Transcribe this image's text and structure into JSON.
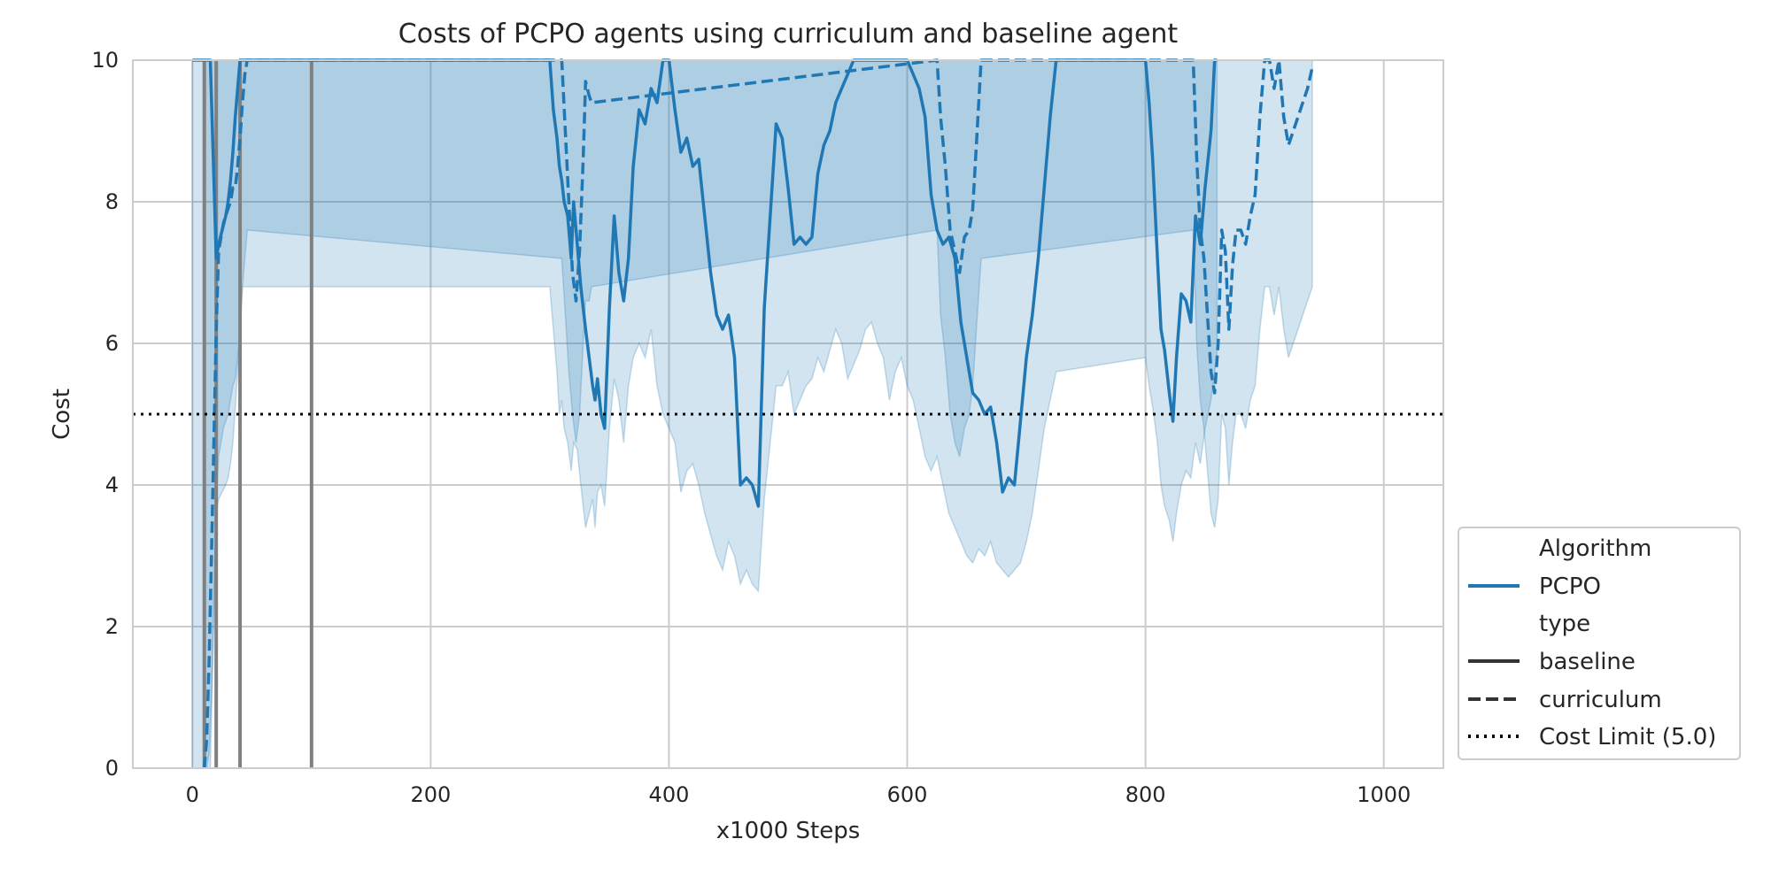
{
  "chart_data": {
    "type": "line",
    "title": "Costs of PCPO agents using curriculum and baseline agent",
    "xlabel": "x1000 Steps",
    "ylabel": "Cost",
    "xlim": [
      -50,
      1050
    ],
    "ylim": [
      0,
      10
    ],
    "x_ticks": [
      0,
      200,
      400,
      600,
      800,
      1000
    ],
    "y_ticks": [
      0,
      2,
      4,
      6,
      8,
      10
    ],
    "grid": true,
    "legend_position": "lower-right outside",
    "colors": {
      "series": "#1f77b4",
      "band": "#1f77b4",
      "limit": "#000000",
      "curriculum_marker": "#808080",
      "grid": "#cccccc"
    },
    "legend": {
      "entries": [
        {
          "label": "Algorithm",
          "style": "header"
        },
        {
          "label": "PCPO",
          "style": "color"
        },
        {
          "label": "type",
          "style": "header"
        },
        {
          "label": "baseline",
          "style": "solid"
        },
        {
          "label": "curriculum",
          "style": "dashed"
        },
        {
          "label": "Cost Limit (5.0)",
          "style": "dotted"
        }
      ]
    },
    "cost_limit": 5.0,
    "curriculum_task_switches": [
      10,
      20,
      40,
      100
    ],
    "series": [
      {
        "name": "baseline",
        "algorithm": "PCPO",
        "linestyle": "solid",
        "x": [
          0,
          15,
          20,
          22,
          25,
          28,
          30,
          32,
          34,
          36,
          38,
          40,
          42,
          300,
          303,
          306,
          308,
          310,
          312,
          315,
          318,
          320,
          323,
          326,
          330,
          333,
          336,
          338,
          340,
          343,
          346,
          350,
          354,
          358,
          362,
          366,
          370,
          375,
          380,
          385,
          390,
          395,
          400,
          405,
          410,
          415,
          420,
          425,
          430,
          435,
          440,
          445,
          450,
          455,
          460,
          465,
          470,
          475,
          480,
          485,
          490,
          495,
          500,
          505,
          510,
          515,
          520,
          525,
          530,
          535,
          540,
          545,
          550,
          555,
          560,
          565,
          570,
          575,
          580,
          585,
          590,
          595,
          600,
          605,
          610,
          615,
          620,
          625,
          630,
          635,
          640,
          645,
          650,
          655,
          660,
          665,
          670,
          675,
          680,
          685,
          690,
          695,
          700,
          705,
          710,
          715,
          720,
          725,
          800,
          803,
          806,
          810,
          813,
          816,
          820,
          823,
          826,
          830,
          834,
          838,
          842,
          846,
          850,
          855,
          858,
          860
        ],
        "y": [
          10.0,
          10.0,
          7.2,
          7.4,
          7.6,
          7.8,
          8.0,
          8.3,
          8.7,
          9.2,
          9.6,
          10.0,
          10.0,
          10.0,
          9.3,
          8.9,
          8.5,
          8.3,
          8.0,
          7.8,
          7.2,
          8.0,
          7.4,
          6.8,
          6.2,
          5.8,
          5.4,
          5.2,
          5.5,
          5.0,
          4.8,
          6.5,
          7.8,
          7.0,
          6.6,
          7.2,
          8.5,
          9.3,
          9.1,
          9.6,
          9.4,
          10.0,
          10.0,
          9.3,
          8.7,
          8.9,
          8.5,
          8.6,
          7.8,
          7.0,
          6.4,
          6.2,
          6.4,
          5.8,
          4.0,
          4.1,
          4.0,
          3.7,
          6.5,
          7.8,
          9.1,
          8.9,
          8.2,
          7.4,
          7.5,
          7.4,
          7.5,
          8.4,
          8.8,
          9.0,
          9.4,
          9.6,
          9.8,
          10.0,
          10.0,
          10.0,
          10.0,
          10.0,
          10.0,
          10.0,
          10.0,
          10.0,
          10.0,
          9.8,
          9.6,
          9.2,
          8.1,
          7.6,
          7.4,
          7.5,
          7.2,
          6.3,
          5.8,
          5.3,
          5.2,
          5.0,
          5.1,
          4.6,
          3.9,
          4.1,
          4.0,
          4.9,
          5.8,
          6.4,
          7.2,
          8.2,
          9.2,
          10.0,
          10.0,
          9.4,
          8.6,
          7.2,
          6.2,
          5.9,
          5.3,
          4.9,
          5.8,
          6.7,
          6.6,
          6.3,
          7.8,
          7.4,
          8.2,
          9.0,
          10.0,
          10.0
        ],
        "ci_low": [
          0.0,
          0.0,
          3.6,
          3.8,
          3.9,
          4.0,
          4.1,
          4.3,
          4.6,
          5.1,
          5.6,
          6.2,
          6.8,
          6.8,
          6.2,
          5.6,
          5.0,
          5.2,
          4.8,
          4.6,
          4.2,
          4.6,
          4.5,
          4.0,
          3.4,
          3.6,
          3.8,
          3.4,
          3.9,
          4.0,
          3.7,
          4.8,
          5.5,
          5.2,
          4.6,
          5.4,
          5.8,
          6.0,
          5.8,
          6.2,
          5.4,
          5.0,
          4.8,
          4.6,
          3.9,
          4.2,
          4.3,
          4.0,
          3.6,
          3.3,
          3.0,
          2.8,
          3.2,
          3.0,
          2.6,
          2.8,
          2.6,
          2.5,
          3.8,
          4.6,
          5.4,
          5.4,
          5.6,
          5.0,
          5.2,
          5.4,
          5.5,
          5.8,
          5.6,
          5.9,
          6.2,
          6.0,
          5.5,
          5.7,
          5.9,
          6.2,
          6.3,
          6.0,
          5.8,
          5.2,
          5.6,
          5.8,
          5.4,
          5.2,
          4.8,
          4.4,
          4.2,
          4.4,
          4.0,
          3.6,
          3.4,
          3.2,
          3.0,
          2.9,
          3.1,
          3.0,
          3.2,
          2.9,
          2.8,
          2.7,
          2.8,
          2.9,
          3.2,
          3.6,
          4.2,
          4.8,
          5.2,
          5.6,
          5.8,
          5.4,
          5.1,
          4.6,
          4.0,
          3.7,
          3.5,
          3.2,
          3.6,
          4.0,
          4.2,
          4.1,
          4.6,
          4.3,
          4.8,
          5.2,
          5.6,
          5.8
        ],
        "ci_high": [
          10.0,
          10.0,
          10.0,
          10.0,
          10.0,
          10.0,
          10.0,
          10.0,
          10.0,
          10.0,
          10.0,
          10.0,
          10.0,
          10.0,
          10.0,
          10.0,
          10.0,
          10.0,
          10.0,
          10.0,
          10.0,
          10.0,
          10.0,
          10.0,
          10.0,
          10.0,
          10.0,
          10.0,
          10.0,
          10.0,
          10.0,
          10.0,
          10.0,
          10.0,
          10.0,
          10.0,
          10.0,
          10.0,
          10.0,
          10.0,
          10.0,
          10.0,
          10.0,
          10.0,
          10.0,
          10.0,
          10.0,
          10.0,
          10.0,
          10.0,
          10.0,
          10.0,
          10.0,
          10.0,
          10.0,
          10.0,
          10.0,
          10.0,
          10.0,
          10.0,
          10.0,
          10.0,
          10.0,
          10.0,
          10.0,
          10.0,
          10.0,
          10.0,
          10.0,
          10.0,
          10.0,
          10.0,
          10.0,
          10.0,
          10.0,
          10.0,
          10.0,
          10.0,
          10.0,
          10.0,
          10.0,
          10.0,
          10.0,
          10.0,
          10.0,
          10.0,
          10.0,
          10.0,
          10.0,
          10.0,
          10.0,
          10.0,
          10.0,
          10.0,
          10.0,
          10.0,
          10.0,
          10.0,
          10.0,
          10.0,
          10.0,
          10.0,
          10.0,
          10.0,
          10.0,
          10.0,
          10.0,
          10.0,
          10.0,
          10.0,
          10.0,
          10.0,
          10.0,
          10.0,
          10.0,
          10.0,
          10.0,
          10.0,
          10.0,
          10.0,
          10.0,
          10.0,
          10.0,
          10.0,
          10.0,
          10.0
        ]
      },
      {
        "name": "curriculum",
        "algorithm": "PCPO",
        "linestyle": "dashed",
        "x": [
          10,
          12,
          14,
          16,
          18,
          20,
          22,
          24,
          26,
          28,
          30,
          32,
          34,
          36,
          38,
          40,
          42,
          44,
          46,
          310,
          313,
          316,
          319,
          322,
          325,
          328,
          330,
          333,
          335,
          625,
          628,
          632,
          636,
          640,
          644,
          648,
          652,
          655,
          658,
          662,
          840,
          843,
          846,
          849,
          852,
          855,
          858,
          861,
          864,
          867,
          870,
          873,
          876,
          880,
          884,
          888,
          892,
          896,
          900,
          904,
          908,
          912,
          916,
          920,
          924,
          928,
          932,
          936,
          940
        ],
        "y": [
          0.0,
          0.4,
          1.5,
          3.0,
          4.6,
          6.2,
          7.3,
          7.5,
          7.7,
          7.8,
          7.9,
          8.0,
          8.2,
          8.2,
          8.5,
          8.9,
          9.4,
          9.8,
          10.0,
          10.0,
          9.0,
          8.0,
          7.0,
          6.6,
          7.3,
          8.6,
          9.7,
          9.5,
          9.4,
          10.0,
          9.2,
          8.5,
          7.6,
          7.3,
          7.0,
          7.5,
          7.6,
          7.9,
          8.8,
          10.0,
          10.0,
          8.6,
          7.6,
          7.2,
          6.4,
          5.6,
          5.3,
          6.0,
          7.6,
          7.3,
          6.2,
          7.1,
          7.6,
          7.6,
          7.4,
          7.8,
          8.1,
          9.2,
          10.0,
          10.0,
          9.6,
          10.0,
          9.2,
          8.8,
          9.0,
          9.2,
          9.4,
          9.6,
          9.9
        ],
        "ci_low": [
          0.0,
          0.0,
          0.2,
          1.0,
          2.4,
          3.8,
          4.4,
          4.6,
          4.8,
          4.9,
          5.0,
          5.2,
          5.4,
          5.5,
          5.8,
          6.2,
          6.8,
          7.2,
          7.6,
          7.2,
          6.4,
          5.6,
          5.0,
          4.6,
          5.0,
          6.0,
          6.6,
          6.6,
          6.8,
          7.6,
          6.4,
          5.8,
          5.0,
          4.6,
          4.4,
          4.8,
          5.0,
          5.4,
          6.2,
          7.2,
          7.6,
          6.0,
          5.2,
          4.8,
          4.2,
          3.6,
          3.4,
          3.8,
          5.0,
          4.8,
          4.0,
          4.6,
          5.0,
          5.0,
          4.8,
          5.2,
          5.4,
          6.2,
          6.8,
          6.8,
          6.4,
          6.8,
          6.2,
          5.8,
          6.0,
          6.2,
          6.4,
          6.6,
          6.8
        ],
        "ci_high": [
          10.0,
          10.0,
          10.0,
          10.0,
          10.0,
          10.0,
          10.0,
          10.0,
          10.0,
          10.0,
          10.0,
          10.0,
          10.0,
          10.0,
          10.0,
          10.0,
          10.0,
          10.0,
          10.0,
          10.0,
          10.0,
          10.0,
          10.0,
          10.0,
          10.0,
          10.0,
          10.0,
          10.0,
          10.0,
          10.0,
          10.0,
          10.0,
          10.0,
          10.0,
          10.0,
          10.0,
          10.0,
          10.0,
          10.0,
          10.0,
          10.0,
          10.0,
          10.0,
          10.0,
          10.0,
          10.0,
          10.0,
          10.0,
          10.0,
          10.0,
          10.0,
          10.0,
          10.0,
          10.0,
          10.0,
          10.0,
          10.0,
          10.0,
          10.0,
          10.0,
          10.0,
          10.0,
          10.0,
          10.0,
          10.0,
          10.0,
          10.0,
          10.0,
          10.0
        ]
      }
    ]
  }
}
